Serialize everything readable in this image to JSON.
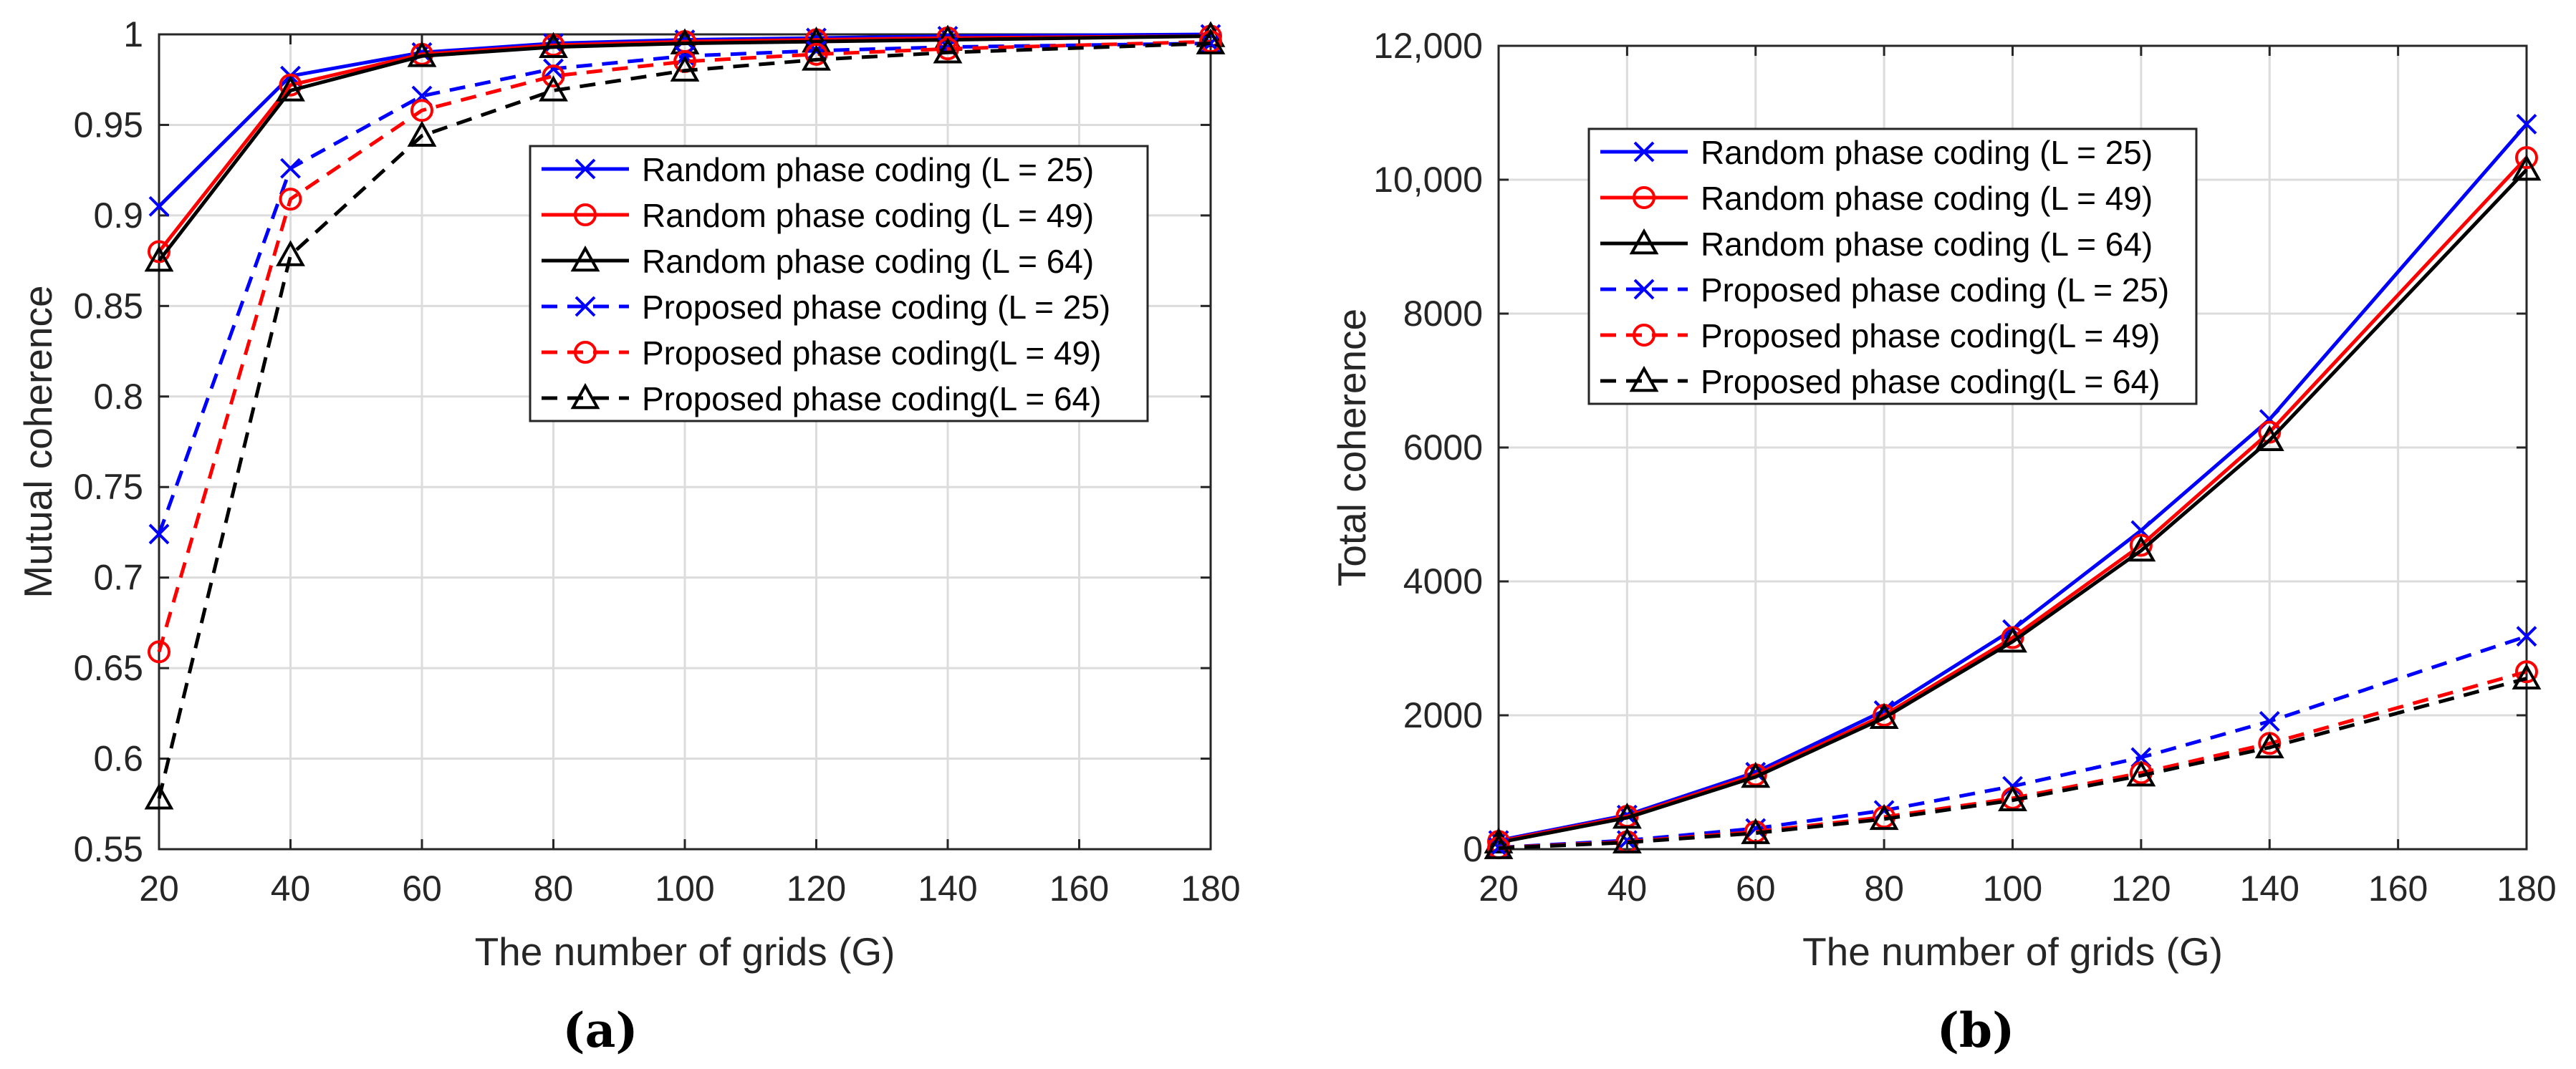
{
  "colors": {
    "blue": "#0000ff",
    "red": "#ff0000",
    "black": "#000000",
    "grid": "#dcdcdc",
    "axis": "#262626"
  },
  "chart_data": [
    {
      "type": "line",
      "panel_label": "(a)",
      "title": "",
      "xlabel": "The number of grids (G)",
      "ylabel": "Mutual coherence",
      "xlim": [
        20,
        180
      ],
      "ylim": [
        0.55,
        1
      ],
      "grid": true,
      "legend_position": "center-right",
      "x_ticks": [
        20,
        40,
        60,
        80,
        100,
        120,
        140,
        160,
        180
      ],
      "x_tick_labels": [
        "20",
        "40",
        "60",
        "80",
        "100",
        "120",
        "140",
        "160",
        "180"
      ],
      "y_ticks": [
        0.55,
        0.6,
        0.65,
        0.7,
        0.75,
        0.8,
        0.85,
        0.9,
        0.95,
        1
      ],
      "y_tick_labels": [
        "0.55",
        "0.6",
        "0.65",
        "0.7",
        "0.75",
        "0.8",
        "0.85",
        "0.9",
        "0.95",
        "1"
      ],
      "x": [
        20,
        40,
        60,
        80,
        100,
        120,
        140,
        180
      ],
      "series": [
        {
          "name": "Random phase coding (L = 25)",
          "color": "blue",
          "dash": "solid",
          "marker": "x",
          "values": [
            0.905,
            0.977,
            0.99,
            0.995,
            0.997,
            0.998,
            0.999,
            1.0
          ]
        },
        {
          "name": "Random phase coding (L = 49)",
          "color": "red",
          "dash": "solid",
          "marker": "o",
          "values": [
            0.88,
            0.972,
            0.989,
            0.994,
            0.996,
            0.997,
            0.998,
            0.999
          ]
        },
        {
          "name": "Random phase coding (L = 64)",
          "color": "black",
          "dash": "solid",
          "marker": "triangle",
          "values": [
            0.875,
            0.969,
            0.988,
            0.993,
            0.995,
            0.996,
            0.997,
            0.999
          ]
        },
        {
          "name": "Proposed phase coding (L = 25)",
          "color": "blue",
          "dash": "dashed",
          "marker": "x",
          "values": [
            0.724,
            0.926,
            0.966,
            0.981,
            0.988,
            0.991,
            0.993,
            0.995
          ]
        },
        {
          "name": "Proposed phase coding(L = 49)",
          "color": "red",
          "dash": "dashed",
          "marker": "o",
          "values": [
            0.659,
            0.909,
            0.958,
            0.977,
            0.985,
            0.989,
            0.992,
            0.996
          ]
        },
        {
          "name": "Proposed phase coding(L = 64)",
          "color": "black",
          "dash": "dashed",
          "marker": "triangle",
          "values": [
            0.578,
            0.878,
            0.944,
            0.969,
            0.98,
            0.986,
            0.99,
            0.995
          ]
        }
      ]
    },
    {
      "type": "line",
      "panel_label": "(b)",
      "title": "",
      "xlabel": "The number of grids (G)",
      "ylabel": "Total coherence",
      "xlim": [
        20,
        180
      ],
      "ylim": [
        0,
        12000
      ],
      "grid": true,
      "legend_position": "top-left",
      "x_ticks": [
        20,
        40,
        60,
        80,
        100,
        120,
        140,
        160,
        180
      ],
      "x_tick_labels": [
        "20",
        "40",
        "60",
        "80",
        "100",
        "120",
        "140",
        "160",
        "180"
      ],
      "y_ticks": [
        0,
        2000,
        4000,
        6000,
        8000,
        10000,
        12000
      ],
      "y_tick_labels": [
        "0",
        "2000",
        "4000",
        "6000",
        "8000",
        "10,000",
        "12,000"
      ],
      "x": [
        20,
        40,
        60,
        80,
        100,
        120,
        140,
        180
      ],
      "series": [
        {
          "name": "Random phase coding (L = 25)",
          "color": "blue",
          "dash": "solid",
          "marker": "x",
          "values": [
            130,
            510,
            1150,
            2070,
            3280,
            4760,
            6420,
            10830
          ]
        },
        {
          "name": "Random phase coding (L = 49)",
          "color": "red",
          "dash": "solid",
          "marker": "o",
          "values": [
            115,
            490,
            1110,
            2000,
            3160,
            4540,
            6230,
            10330
          ]
        },
        {
          "name": "Random phase coding (L = 64)",
          "color": "black",
          "dash": "solid",
          "marker": "triangle",
          "values": [
            100,
            470,
            1080,
            1960,
            3100,
            4460,
            6110,
            10150
          ]
        },
        {
          "name": "Proposed phase coding (L = 25)",
          "color": "blue",
          "dash": "dashed",
          "marker": "x",
          "values": [
            25,
            130,
            310,
            580,
            940,
            1370,
            1910,
            3180
          ]
        },
        {
          "name": "Proposed phase coding(L = 49)",
          "color": "red",
          "dash": "dashed",
          "marker": "o",
          "values": [
            20,
            110,
            260,
            480,
            760,
            1140,
            1580,
            2650
          ]
        },
        {
          "name": "Proposed phase coding(L = 64)",
          "color": "black",
          "dash": "dashed",
          "marker": "triangle",
          "values": [
            15,
            100,
            240,
            450,
            730,
            1100,
            1520,
            2550
          ]
        }
      ]
    }
  ]
}
